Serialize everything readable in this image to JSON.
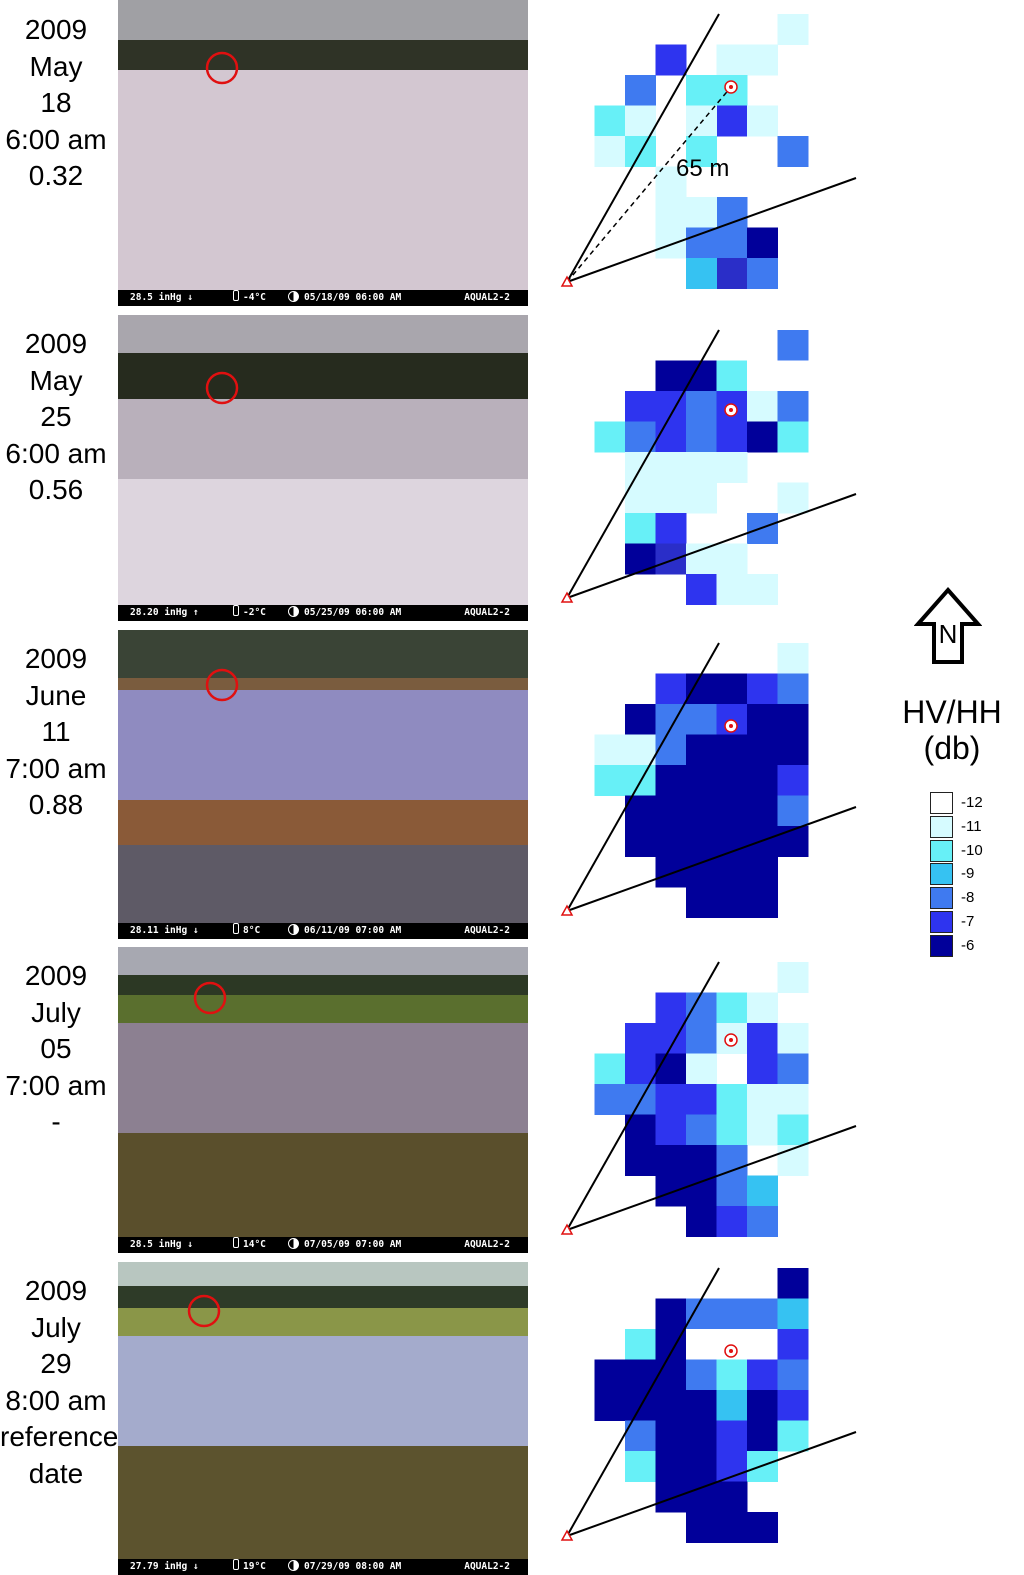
{
  "panels": [
    {
      "date_lines": [
        "2009",
        "May",
        "18",
        "6:00 am",
        "0.32"
      ],
      "scene": "snow",
      "osd": {
        "pressure": "28.5 inHg",
        "pressure_arrow": "↓",
        "temperature": "-4°C",
        "datetime": "05/18/09 06:00 AM",
        "camera": "AQUAL2-2"
      },
      "map": {
        "rows": [
          "______________2",
          "_____77__2_2___",
          "___88__3_3_____",
          "__3_2__22_7_2__",
          "__2_3__3_____83",
          "_____2_________",
          "_____2_22_8____",
          "______2_8_86___",
          "_______4__5_8__"
        ],
        "distance_label": "65 m"
      }
    },
    {
      "date_lines": [
        "2009",
        "May",
        "25",
        "6:00 am",
        "0.56"
      ],
      "scene": "meltpond",
      "osd": {
        "pressure": "28.20 inHg",
        "pressure_arrow": "↑",
        "temperature": "-2°C",
        "datetime": "05/25/09 06:00 AM",
        "camera": "AQUAL2-2"
      },
      "map": {
        "rows": [
          "______________8",
          "______66_3_1_1_",
          "____7_7_8_7_2_8",
          "__3_8_7_8_7_6_3",
          "____2_2_2_2____",
          "____2_2_2_____2",
          "____3_7_____8__",
          "____6_5_2_2____",
          "_______7_2_2___"
        ],
        "distance_label": ""
      }
    },
    {
      "date_lines": [
        "2009",
        "June",
        "11",
        "7:00 am",
        "0.88"
      ],
      "scene": "summer",
      "osd": {
        "pressure": "28.11 inHg",
        "pressure_arrow": "↓",
        "temperature": "8°C",
        "datetime": "06/11/09 07:00 AM",
        "camera": "AQUAL2-2"
      },
      "map": {
        "rows": [
          "______________2",
          "______76_6_7_8_",
          "____6_8_8_7_6_6",
          "__2_2_8_6_6_6_6",
          "__3_3_6_6_6_6_7",
          "____6_6_6_6_6_8",
          "____6_6_6_6_6_6",
          "______6_6_6_6__",
          "_______6_6_6___"
        ],
        "distance_label": ""
      }
    },
    {
      "date_lines": [
        "2009",
        "July",
        "05",
        "7:00 am",
        "-"
      ],
      "scene": "july5",
      "osd": {
        "pressure": "28.5 inHg",
        "pressure_arrow": "↓",
        "temperature": "14°C",
        "datetime": "07/05/09 07:00 AM",
        "camera": "AQUAL2-2"
      },
      "map": {
        "rows": [
          "______________2",
          "______78_3_2___",
          "____7_7_8_2_7_2",
          "__3_7_6_2__7_8_",
          "__8_8_7_7_3_2_2",
          "____6_7_8_3_2_3",
          "____6_6_6_8__2_",
          "______6_6_8_9__",
          "_______6_7_8___"
        ],
        "distance_label": ""
      }
    },
    {
      "date_lines": [
        "2009",
        "July",
        "29",
        "8:00 am",
        "reference",
        "date"
      ],
      "scene": "july29",
      "osd": {
        "pressure": "27.79 inHg",
        "pressure_arrow": "↓",
        "temperature": "19°C",
        "datetime": "07/29/09 08:00 AM",
        "camera": "AQUAL2-2"
      },
      "map": {
        "rows": [
          "______________6",
          "______68_8_8_9_",
          "____3_6_1_1_1_7",
          "__6_6_6_8_3_7_8",
          "__6_6_6_6_9_6_7",
          "____8_6_6_7_6_3",
          "____3_6_6_7_3__",
          "______6_6_6____",
          "_______6_6_6___"
        ],
        "distance_label": ""
      }
    }
  ],
  "legend": {
    "title_lines": [
      "HV/HH",
      "(db)"
    ],
    "north_label": "N",
    "entries": [
      {
        "label": "-12",
        "color": "#ffffff"
      },
      {
        "label": "-11",
        "color": "#d6fbff"
      },
      {
        "label": "-10",
        "color": "#67f0f7"
      },
      {
        "label": "-9",
        "color": "#36c2f2"
      },
      {
        "label": "-8",
        "color": "#3f7af0"
      },
      {
        "label": "-7",
        "color": "#2e34ef"
      },
      {
        "label": "-6",
        "color": "#01009a"
      }
    ]
  },
  "color_scale": {
    "1": "#ffffff",
    "2": "#d6fbff",
    "3": "#67f0f7",
    "9": "#36c2f2",
    "8": "#3f7af0",
    "7": "#2e34ef",
    "6": "#01009a",
    "4": "#36c2f2",
    "5": "#2a2ec8"
  },
  "colors": {
    "marker": "#e01010",
    "line": "#000000"
  }
}
